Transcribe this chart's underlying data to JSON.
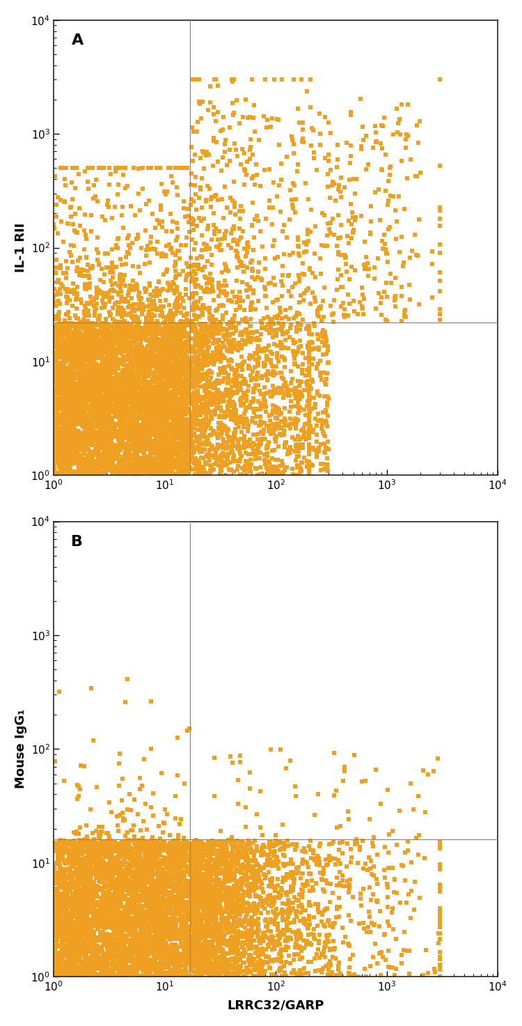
{
  "dot_color": "#F0A020",
  "background_color": "#ffffff",
  "panel_A_label": "A",
  "panel_B_label": "B",
  "ylabel_A": "IL-1 RII",
  "ylabel_B": "Mouse IgG₁",
  "xlabel": "LRRC32/GARP",
  "xline": 17.0,
  "yline_A": 22.0,
  "yline_B": 16.0,
  "xlim": [
    1.0,
    10000.0
  ],
  "ylim": [
    1.0,
    10000.0
  ],
  "marker_size": 16,
  "line_color": "#888888",
  "axis_color": "#222222",
  "label_fontsize": 13,
  "tick_fontsize": 11,
  "panel_label_fontsize": 16
}
